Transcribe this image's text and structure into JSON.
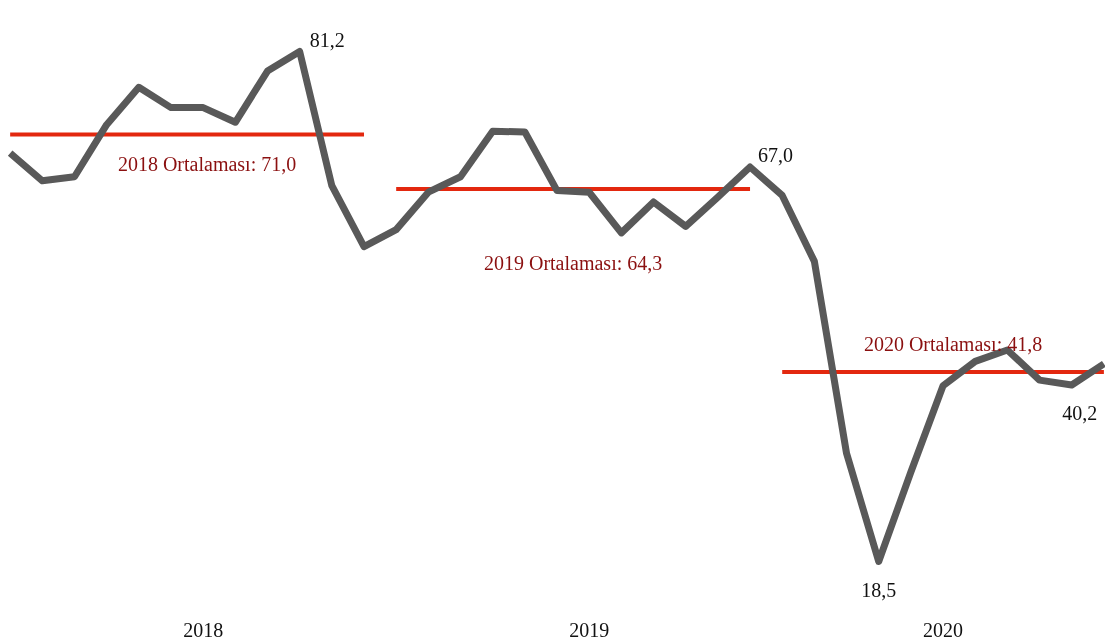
{
  "chart_data": {
    "type": "line",
    "categories": [
      null,
      null,
      null,
      null,
      null,
      null,
      "2018",
      null,
      null,
      null,
      null,
      null,
      null,
      null,
      null,
      null,
      null,
      null,
      "2019",
      null,
      null,
      null,
      null,
      null,
      null,
      null,
      null,
      null,
      null,
      "2020",
      null,
      null,
      null,
      null,
      null
    ],
    "series": [
      {
        "color": "#595959",
        "values": [
          68.7,
          65.3,
          65.8,
          72.2,
          76.8,
          74.3,
          74.3,
          72.5,
          78.8,
          81.2,
          64.7,
          57.2,
          59.3,
          63.9,
          65.8,
          71.4,
          71.3,
          64.1,
          63.9,
          58.9,
          62.7,
          59.7,
          63.3,
          67.0,
          63.5,
          55.4,
          31.8,
          18.5,
          29.5,
          40.1,
          43.1,
          44.5,
          40.8,
          40.2,
          42.8
        ],
        "value_labels": [
          null,
          null,
          null,
          null,
          null,
          null,
          null,
          null,
          null,
          "81,2",
          null,
          null,
          null,
          null,
          null,
          null,
          null,
          null,
          null,
          null,
          null,
          null,
          null,
          "67,0",
          null,
          null,
          null,
          "18,5",
          null,
          null,
          null,
          null,
          null,
          "40,2",
          null
        ]
      },
      {
        "color": "#e3280f",
        "values": [
          71.0,
          71.0,
          71.0,
          71.0,
          71.0,
          71.0,
          71.0,
          71.0,
          71.0,
          71.0,
          71.0,
          71.0,
          null,
          null,
          null,
          null,
          null,
          null,
          null,
          null,
          null,
          null,
          null,
          null,
          null,
          null,
          null,
          null,
          null,
          null,
          null,
          null,
          null,
          null,
          null
        ]
      },
      {
        "color": "#e3280f",
        "values": [
          null,
          null,
          null,
          null,
          null,
          null,
          null,
          null,
          null,
          null,
          null,
          null,
          64.3,
          64.3,
          64.3,
          64.3,
          64.3,
          64.3,
          64.3,
          64.3,
          64.3,
          64.3,
          64.3,
          64.3,
          null,
          null,
          null,
          null,
          null,
          null,
          null,
          null,
          null,
          null,
          null
        ]
      },
      {
        "color": "#e3280f",
        "values": [
          null,
          null,
          null,
          null,
          null,
          null,
          null,
          null,
          null,
          null,
          null,
          null,
          null,
          null,
          null,
          null,
          null,
          null,
          null,
          null,
          null,
          null,
          null,
          null,
          41.8,
          41.8,
          41.8,
          41.8,
          41.8,
          41.8,
          41.8,
          41.8,
          41.8,
          41.8,
          41.8
        ]
      }
    ],
    "annotations": [
      "2018 Ortalaması: 71,0",
      "2019 Ortalaması: 64,3",
      "2020 Ortalaması: 41,8"
    ],
    "tick_labels": "x"
  }
}
